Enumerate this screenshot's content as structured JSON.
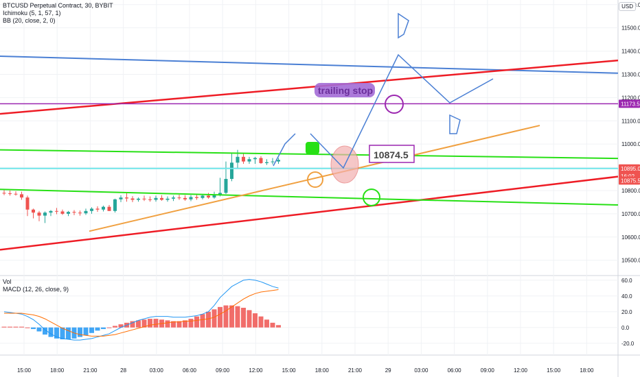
{
  "legend": {
    "symbol": "BTCUSD Perpetual Contract, 30, BYBIT",
    "ichimoku": "Ichimoku (5, 1, 57, 1)",
    "bb": "BB (20, close, 2, 0)",
    "vol": "Vol",
    "macd": "MACD (12, 26, close, 9)",
    "currency": "USD"
  },
  "annotations": {
    "trailing_stop": "trailing stop",
    "price_box": "10874.5"
  },
  "price_axis": {
    "ticks": [
      "11600.0",
      "11500.0",
      "11400.0",
      "11300.0",
      "11200.0",
      "11100.0",
      "11000.0",
      "10900.0",
      "10800.0",
      "10700.0",
      "10600.0",
      "10500.0"
    ],
    "badges": [
      {
        "text": "11173.5",
        "color": "#9c27b0"
      },
      {
        "text": "10895.0",
        "color": "#ef5350"
      },
      {
        "text": "16:02",
        "color": "#ef5350"
      },
      {
        "text": "10875.5",
        "color": "#ef5350"
      }
    ]
  },
  "macd_axis": {
    "ticks": [
      "60.0",
      "40.0",
      "20.0",
      "0.0",
      "-20.0"
    ]
  },
  "time_axis": {
    "ticks": [
      "15:00",
      "18:00",
      "21:00",
      "28",
      "03:00",
      "06:00",
      "09:00",
      "12:00",
      "15:00",
      "18:00",
      "21:00",
      "29",
      "03:00",
      "06:00",
      "09:00",
      "12:00",
      "15:00",
      "18:00"
    ]
  },
  "colors": {
    "blue_line": "#4a7fd4",
    "red_line": "#ee1c25",
    "green_line": "#27e015",
    "purple_line": "#9c27b0",
    "cyan_line": "#6fe6ea",
    "orange_line": "#f0a040",
    "bull": "#26a69a",
    "bear": "#ef5350"
  },
  "chart_data": [
    {
      "type": "candlestick",
      "title": "BTCUSD Perpetual Contract, 30, BYBIT",
      "ylim": [
        10440,
        11620
      ],
      "x": [
        "27 14:30",
        "27 15:00",
        "27 15:30",
        "27 16:00",
        "27 16:30",
        "27 17:00",
        "27 17:30",
        "27 18:00",
        "27 18:30",
        "27 19:00",
        "27 19:30",
        "27 20:00",
        "27 20:30",
        "27 21:00",
        "27 21:30",
        "27 22:00",
        "27 22:30",
        "27 23:00",
        "27 23:30",
        "28 00:00",
        "28 00:30",
        "28 01:00",
        "28 01:30",
        "28 02:00",
        "28 02:30",
        "28 03:00",
        "28 03:30",
        "28 04:00",
        "28 04:30",
        "28 05:00",
        "28 05:30",
        "28 06:00",
        "28 06:30",
        "28 07:00",
        "28 07:30",
        "28 08:00",
        "28 08:30",
        "28 09:00",
        "28 09:30",
        "28 10:00",
        "28 10:30",
        "28 11:00",
        "28 11:30",
        "28 12:00",
        "28 12:30",
        "28 13:00",
        "28 13:30",
        "28 14:00"
      ],
      "open": [
        10790,
        10788,
        10786,
        10784,
        10770,
        10718,
        10705,
        10692,
        10705,
        10712,
        10710,
        10700,
        10708,
        10705,
        10702,
        10712,
        10722,
        10718,
        10730,
        10712,
        10762,
        10770,
        10766,
        10760,
        10765,
        10762,
        10760,
        10768,
        10760,
        10765,
        10770,
        10768,
        10762,
        10772,
        10768,
        10778,
        10770,
        10782,
        10790,
        10850,
        10920,
        10945,
        10925,
        10935,
        10940,
        10918,
        10922,
        10925
      ],
      "high": [
        10802,
        10800,
        10797,
        10795,
        10778,
        10722,
        10712,
        10710,
        10716,
        10725,
        10718,
        10712,
        10716,
        10714,
        10722,
        10728,
        10732,
        10735,
        10738,
        10765,
        10780,
        10788,
        10776,
        10770,
        10778,
        10775,
        10778,
        10780,
        10775,
        10778,
        10782,
        10780,
        10780,
        10782,
        10785,
        10790,
        10795,
        10855,
        10925,
        10960,
        10975,
        10962,
        10945,
        10945,
        10948,
        10935,
        10940,
        10940
      ],
      "low": [
        10780,
        10778,
        10778,
        10760,
        10690,
        10680,
        10668,
        10660,
        10690,
        10698,
        10695,
        10690,
        10694,
        10692,
        10695,
        10700,
        10708,
        10710,
        10712,
        10705,
        10750,
        10752,
        10750,
        10752,
        10755,
        10752,
        10752,
        10756,
        10752,
        10755,
        10760,
        10756,
        10754,
        10760,
        10762,
        10765,
        10765,
        10775,
        10785,
        10840,
        10895,
        10915,
        10915,
        10915,
        10915,
        10910,
        10912,
        10915
      ],
      "close": [
        10788,
        10786,
        10784,
        10770,
        10718,
        10705,
        10692,
        10705,
        10712,
        10710,
        10700,
        10708,
        10705,
        10702,
        10712,
        10722,
        10718,
        10730,
        10712,
        10762,
        10770,
        10766,
        10760,
        10765,
        10762,
        10760,
        10768,
        10760,
        10765,
        10770,
        10768,
        10762,
        10772,
        10768,
        10778,
        10770,
        10782,
        10790,
        10850,
        10920,
        10945,
        10925,
        10935,
        10940,
        10918,
        10922,
        10925,
        10932
      ]
    },
    {
      "type": "line",
      "title": "Drawn lines and overlays",
      "series": [
        {
          "values": [
            11378,
            11305
          ]
        },
        {
          "values": [
            11130,
            11360
          ]
        },
        {
          "values": [
            10545,
            10860
          ]
        },
        {
          "values": [
            10975,
            10938
          ]
        },
        {
          "values": [
            10805,
            10738
          ]
        },
        {
          "values": [
            11173.5,
            11173.5
          ]
        },
        {
          "values": [
            10895,
            10895
          ]
        },
        {
          "values": [
            10625,
            11080
          ]
        }
      ]
    },
    {
      "type": "bar",
      "title": "MACD (12, 26, close, 9)",
      "ylim": [
        -35,
        65
      ],
      "values": [
        1,
        1,
        1,
        1,
        0,
        -2,
        -5,
        -9,
        -12,
        -14,
        -15,
        -15,
        -14,
        -12,
        -10,
        -7,
        -4,
        -2,
        0,
        2,
        4,
        6,
        8,
        9,
        10,
        11,
        11,
        10,
        9,
        8,
        8,
        9,
        11,
        14,
        17,
        20,
        23,
        26,
        28,
        28,
        27,
        25,
        22,
        18,
        14,
        10,
        6,
        3
      ],
      "series": [
        {
          "values": [
            20,
            19,
            18,
            17,
            14,
            10,
            4,
            -3,
            -8,
            -12,
            -14,
            -15,
            -16,
            -16,
            -15,
            -14,
            -12,
            -10,
            -8,
            -4,
            0,
            3,
            6,
            9,
            11,
            13,
            14,
            14,
            14,
            13,
            13,
            13,
            14,
            15,
            17,
            20,
            28,
            38,
            45,
            52,
            56,
            60,
            61,
            60,
            58,
            55,
            52,
            50
          ]
        },
        {
          "values": [
            18,
            18,
            18,
            18,
            17,
            16,
            14,
            11,
            7,
            3,
            -1,
            -4,
            -7,
            -9,
            -10,
            -11,
            -11,
            -11,
            -10,
            -9,
            -7,
            -5,
            -3,
            -1,
            1,
            3,
            4,
            5,
            6,
            7,
            7,
            8,
            8,
            9,
            10,
            11,
            13,
            17,
            21,
            26,
            31,
            36,
            40,
            43,
            45,
            46,
            47,
            48
          ]
        }
      ]
    }
  ]
}
